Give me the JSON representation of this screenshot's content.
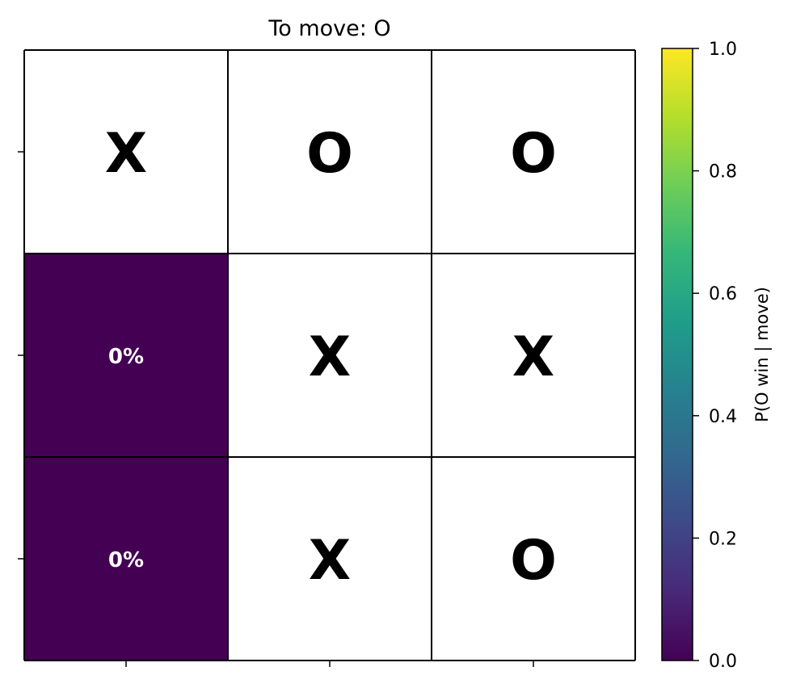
{
  "chart_data": {
    "type": "heatmap",
    "title": "To move: O",
    "board": [
      [
        "X",
        "O",
        "O"
      ],
      [
        "",
        "X",
        "X"
      ],
      [
        "",
        "X",
        "O"
      ]
    ],
    "move_values": [
      [
        null,
        null,
        null
      ],
      [
        0.0,
        null,
        null
      ],
      [
        0.0,
        null,
        null
      ]
    ],
    "move_labels": [
      [
        "",
        "",
        ""
      ],
      [
        "0%",
        "",
        ""
      ],
      [
        "0%",
        "",
        ""
      ]
    ],
    "colorbar": {
      "label": "P(O win | move)",
      "range": [
        0,
        1
      ],
      "ticks": [
        "0.0",
        "0.2",
        "0.4",
        "0.6",
        "0.8",
        "1.0"
      ],
      "colormap": "viridis"
    }
  },
  "colors": {
    "empty_cell": "#ffffff",
    "grid_line": "#000000",
    "viridis": [
      "#440154",
      "#482878",
      "#3e4989",
      "#31688e",
      "#26828e",
      "#1f9e89",
      "#35b779",
      "#6ece58",
      "#b5de2b",
      "#fde725"
    ]
  }
}
